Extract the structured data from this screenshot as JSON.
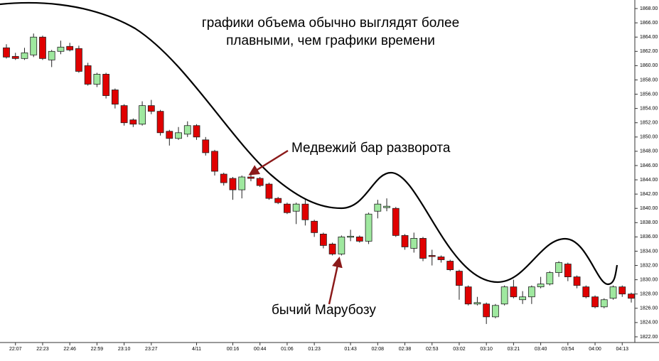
{
  "chart_data": {
    "type": "candlestick",
    "annotations": [
      "графики объема обычно выглядят более",
      "плавными, чем графики времени",
      "Медвежий бар разворота",
      "бычий Марубозу"
    ],
    "categories": [
      null,
      "22:07",
      null,
      null,
      "22:23",
      null,
      null,
      "22:46",
      null,
      null,
      "22:59",
      null,
      null,
      "23:10",
      null,
      null,
      "23:27",
      null,
      null,
      null,
      null,
      "4/11",
      null,
      null,
      null,
      "00:16",
      null,
      null,
      "00:44",
      null,
      null,
      "01:06",
      null,
      null,
      "01:23",
      null,
      null,
      null,
      "01:43",
      null,
      null,
      "02:08",
      null,
      null,
      "02:38",
      null,
      null,
      "02:53",
      null,
      null,
      "03:02",
      null,
      null,
      "03:10",
      null,
      null,
      "03:21",
      null,
      null,
      "03:40",
      null,
      null,
      "03:54",
      null,
      null,
      "04:00",
      null,
      null,
      "04:13",
      null
    ],
    "open": [
      1862.5,
      1861.3,
      1861.0,
      1861.5,
      1864.0,
      1860.8,
      1862.0,
      1862.7,
      1862.4,
      1860.0,
      1857.4,
      1858.8,
      1856.6,
      1854.4,
      1852.4,
      1851.8,
      1854.4,
      1853.6,
      1850.8,
      1849.8,
      1850.4,
      1851.6,
      1849.6,
      1848.0,
      1844.8,
      1844.2,
      1842.6,
      1844.4,
      1844.2,
      1843.4,
      1841.4,
      1840.6,
      1839.6,
      1840.6,
      1838.2,
      1836.4,
      1835.0,
      1833.6,
      1836.0,
      1836.0,
      1835.4,
      1839.6,
      1840.1,
      1840.0,
      1836.2,
      1834.4,
      1835.8,
      1833.4,
      1833.2,
      1832.6,
      1831.2,
      1829.0,
      1826.6,
      1826.6,
      1824.8,
      1826.6,
      1829.0,
      1827.2,
      1827.6,
      1829.0,
      1829.4,
      1831.0,
      1832.2,
      1830.4,
      1829.0,
      1827.6,
      1826.2,
      1827.4,
      1829.0,
      1828.0
    ],
    "high": [
      1863.0,
      1861.8,
      1862.5,
      1864.5,
      1864.2,
      1862.2,
      1863.5,
      1863.2,
      1862.8,
      1860.4,
      1859.0,
      1859.0,
      1856.8,
      1854.6,
      1852.6,
      1855.0,
      1855.2,
      1853.8,
      1851.0,
      1851.4,
      1852.2,
      1851.8,
      1850.0,
      1848.2,
      1845.0,
      1844.4,
      1844.6,
      1844.8,
      1844.4,
      1843.6,
      1841.6,
      1840.8,
      1840.8,
      1841.2,
      1838.4,
      1836.6,
      1835.2,
      1836.2,
      1837.0,
      1836.2,
      1839.4,
      1841.2,
      1841.4,
      1840.2,
      1836.4,
      1836.6,
      1836.0,
      1834.2,
      1833.4,
      1832.8,
      1831.4,
      1829.2,
      1827.6,
      1826.8,
      1826.6,
      1829.2,
      1830.0,
      1828.4,
      1829.2,
      1830.4,
      1831.2,
      1832.6,
      1832.4,
      1830.6,
      1829.2,
      1827.8,
      1827.4,
      1829.2,
      1829.2,
      1828.2
    ],
    "low": [
      1861.0,
      1860.8,
      1860.8,
      1861.2,
      1860.8,
      1859.8,
      1861.6,
      1862.0,
      1859.0,
      1857.2,
      1857.0,
      1855.4,
      1854.0,
      1851.6,
      1851.4,
      1851.6,
      1853.2,
      1850.2,
      1848.8,
      1849.6,
      1850.0,
      1849.6,
      1847.4,
      1844.6,
      1843.2,
      1841.2,
      1841.4,
      1843.8,
      1843.0,
      1841.2,
      1840.6,
      1839.2,
      1837.8,
      1837.6,
      1836.0,
      1834.4,
      1833.4,
      1833.4,
      1835.4,
      1835.2,
      1835.0,
      1838.6,
      1839.6,
      1836.0,
      1834.2,
      1833.8,
      1832.6,
      1832.0,
      1832.4,
      1831.2,
      1827.2,
      1826.4,
      1826.4,
      1823.8,
      1824.6,
      1826.4,
      1827.4,
      1826.6,
      1826.6,
      1828.8,
      1829.2,
      1830.4,
      1829.8,
      1828.8,
      1827.4,
      1826.0,
      1826.0,
      1827.2,
      1827.6,
      1826.8
    ],
    "close": [
      1861.2,
      1861.0,
      1861.8,
      1864.0,
      1861.0,
      1862.0,
      1862.6,
      1862.2,
      1859.2,
      1857.4,
      1858.8,
      1855.8,
      1854.6,
      1852.0,
      1851.8,
      1854.4,
      1853.6,
      1850.6,
      1849.8,
      1850.6,
      1851.6,
      1850.0,
      1847.8,
      1845.2,
      1843.6,
      1842.6,
      1844.4,
      1844.2,
      1843.2,
      1841.4,
      1840.8,
      1839.4,
      1840.6,
      1838.4,
      1836.6,
      1834.8,
      1833.6,
      1836.0,
      1836.1,
      1835.4,
      1839.2,
      1840.6,
      1840.3,
      1836.2,
      1834.6,
      1835.8,
      1833.0,
      1833.3,
      1832.8,
      1831.4,
      1829.2,
      1826.6,
      1826.8,
      1824.8,
      1826.4,
      1829.0,
      1827.6,
      1827.6,
      1829.0,
      1829.4,
      1831.0,
      1832.4,
      1830.4,
      1829.2,
      1827.6,
      1826.2,
      1827.2,
      1829.0,
      1828.0,
      1827.4
    ],
    "up_color": "#9fe89f",
    "down_color": "#e00000",
    "ylim": [
      1821.2,
      1869.2
    ],
    "yticks": [
      {
        "value": 1822,
        "label": "1822.00"
      },
      {
        "value": 1824,
        "label": "1824.00"
      },
      {
        "value": 1826,
        "label": "1826.00"
      },
      {
        "value": 1828,
        "label": "1828.00"
      },
      {
        "value": 1830,
        "label": "1830.00"
      },
      {
        "value": 1832,
        "label": "1832.00"
      },
      {
        "value": 1834,
        "label": "1834.00"
      },
      {
        "value": 1836,
        "label": "1836.00"
      },
      {
        "value": 1838,
        "label": "1838.00"
      },
      {
        "value": 1840,
        "label": "1840.00"
      },
      {
        "value": 1842,
        "label": "1842.00"
      },
      {
        "value": 1844,
        "label": "1844.00"
      },
      {
        "value": 1846,
        "label": "1846.00"
      },
      {
        "value": 1848,
        "label": "1848.00"
      },
      {
        "value": 1850,
        "label": "1850.00"
      },
      {
        "value": 1852,
        "label": "1852.00"
      },
      {
        "value": 1854,
        "label": "1854.00"
      },
      {
        "value": 1856,
        "label": "1856.00"
      },
      {
        "value": 1858,
        "label": "1858.00"
      },
      {
        "value": 1860,
        "label": "1860.00"
      },
      {
        "value": 1862,
        "label": "1862.00"
      },
      {
        "value": 1864,
        "label": "1864.00"
      },
      {
        "value": 1866,
        "label": "1866.00"
      },
      {
        "value": 1868,
        "label": "1868.00"
      }
    ]
  }
}
